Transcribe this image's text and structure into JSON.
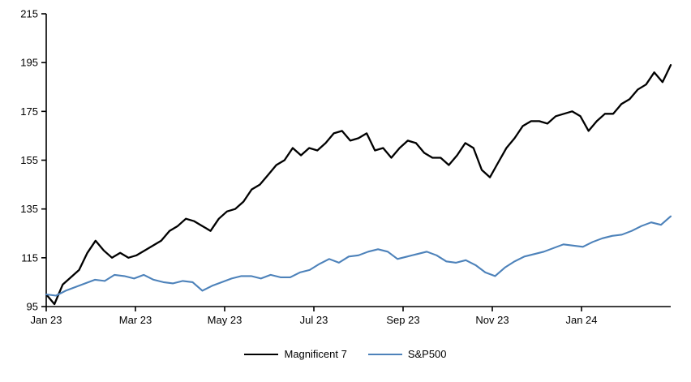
{
  "chart_data": {
    "type": "line",
    "title": "",
    "xlabel": "",
    "ylabel": "",
    "ylim": [
      95,
      215
    ],
    "y_ticks": [
      95,
      115,
      135,
      155,
      175,
      195,
      215
    ],
    "x_ticks": [
      "Jan 23",
      "Mar 23",
      "May 23",
      "Jul 23",
      "Sep 23",
      "Nov 23",
      "Jan 24"
    ],
    "grid": false,
    "legend_position": "bottom-center",
    "axis_color": "#000000",
    "series": [
      {
        "name": "Magnificent 7",
        "color": "#000000",
        "width": 2.3,
        "values": [
          100,
          96,
          104,
          107,
          110,
          117,
          122,
          118,
          115,
          117,
          115,
          116,
          118,
          120,
          122,
          126,
          128,
          131,
          130,
          128,
          126,
          131,
          134,
          135,
          138,
          143,
          145,
          149,
          153,
          155,
          160,
          157,
          160,
          159,
          162,
          166,
          167,
          163,
          164,
          166,
          159,
          160,
          156,
          160,
          163,
          162,
          158,
          156,
          156,
          153,
          157,
          162,
          160,
          151,
          148,
          154,
          160,
          164,
          169,
          171,
          171,
          170,
          173,
          174,
          175,
          173,
          167,
          171,
          174,
          174,
          178,
          180,
          184,
          186,
          191,
          187,
          194
        ]
      },
      {
        "name": "S&P500",
        "color": "#4d82ba",
        "width": 2.1,
        "values": [
          100,
          99.5,
          101.5,
          103,
          104.5,
          106,
          105.5,
          108,
          107.5,
          106.5,
          108,
          106,
          105,
          104.5,
          105.5,
          105,
          101.5,
          103.5,
          105,
          106.5,
          107.5,
          107.5,
          106.5,
          108,
          107,
          107,
          109,
          110,
          112.5,
          114.5,
          113,
          115.5,
          116,
          117.5,
          118.5,
          117.5,
          114.5,
          115.5,
          116.5,
          117.5,
          116,
          113.5,
          113,
          114,
          112,
          109,
          107.5,
          111,
          113.5,
          115.5,
          116.5,
          117.5,
          119,
          120.5,
          120,
          119.5,
          121.5,
          123,
          124,
          124.5,
          126,
          128,
          129.5,
          128.5,
          132
        ]
      }
    ]
  }
}
